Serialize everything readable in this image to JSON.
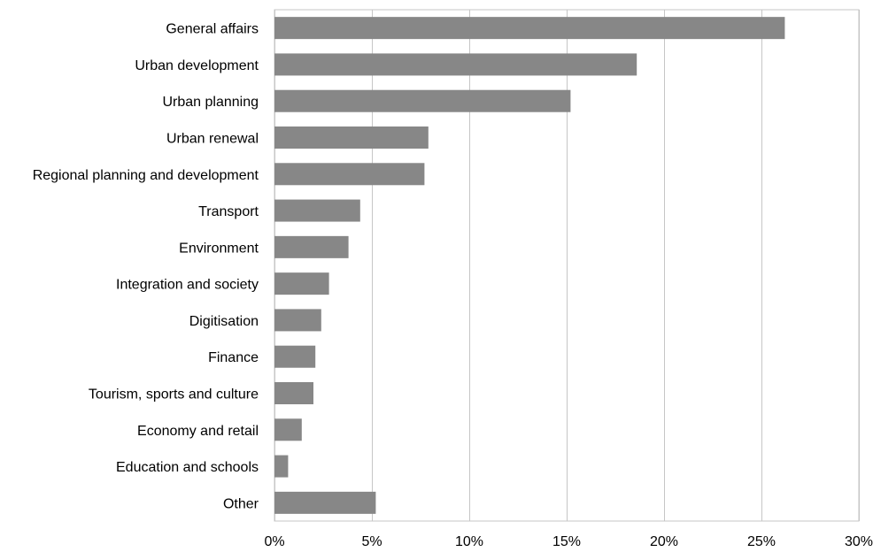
{
  "chart_data": {
    "type": "bar",
    "orientation": "horizontal",
    "categories": [
      "General affairs",
      "Urban development",
      "Urban planning",
      "Urban renewal",
      "Regional planning and development",
      "Transport",
      "Environment",
      "Integration and society",
      "Digitisation",
      "Finance",
      "Tourism, sports and culture",
      "Economy and retail",
      "Education and schools",
      "Other"
    ],
    "values": [
      26.2,
      18.6,
      15.2,
      7.9,
      7.7,
      4.4,
      3.8,
      2.8,
      2.4,
      2.1,
      2.0,
      1.4,
      0.7,
      5.2
    ],
    "title": "",
    "xlabel": "",
    "ylabel": "",
    "xlim": [
      0,
      30
    ],
    "x_ticks": [
      0,
      5,
      10,
      15,
      20,
      25,
      30
    ],
    "x_tick_labels": [
      "0%",
      "5%",
      "10%",
      "15%",
      "20%",
      "25%",
      "30%"
    ],
    "grid": "vertical major gridlines",
    "legend": "none",
    "colors": {
      "bar": "#878787",
      "grid": "#c6c6c6",
      "frame": "#c6c6c6"
    }
  }
}
